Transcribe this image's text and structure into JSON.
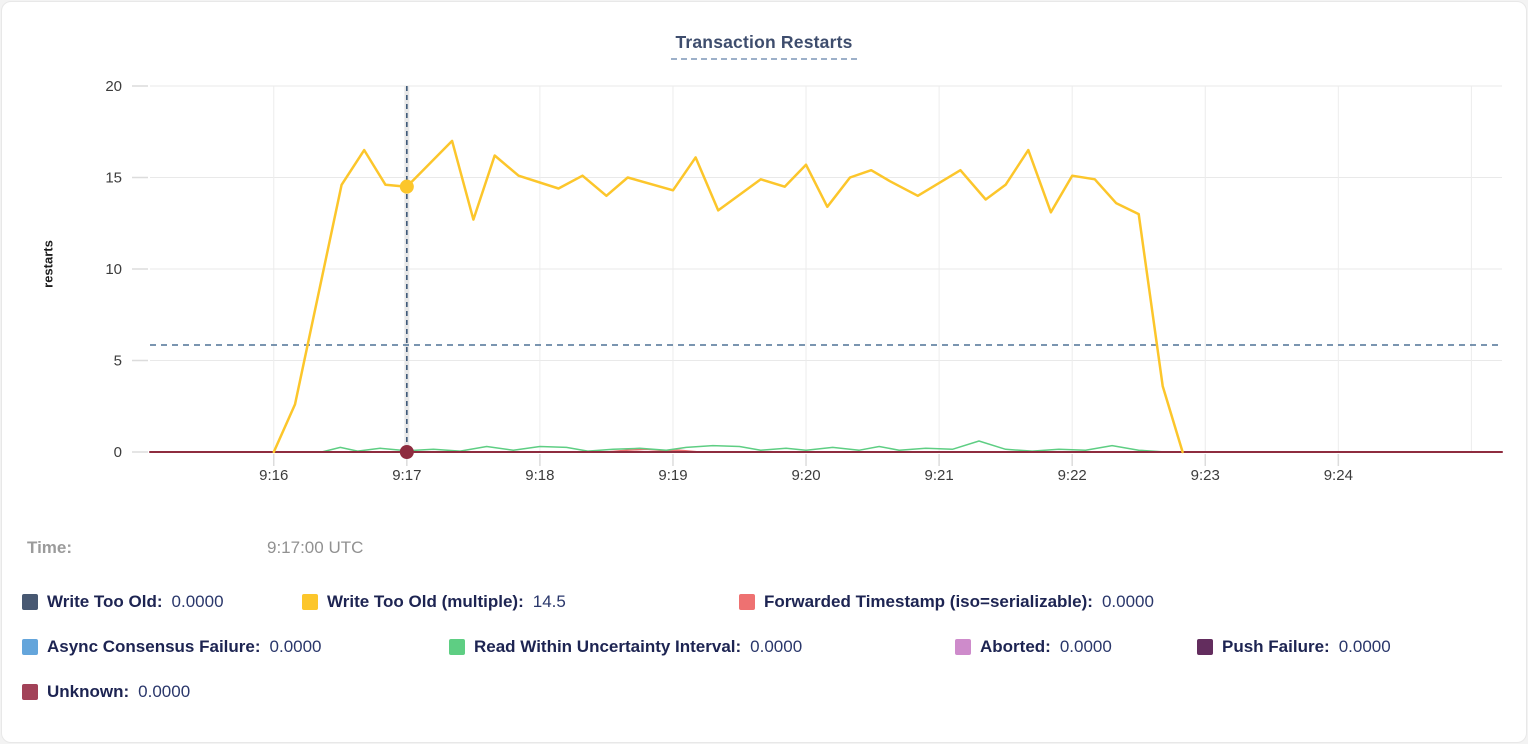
{
  "header": {
    "title": "Transaction Restarts"
  },
  "time_row": {
    "label": "Time:",
    "value": "9:17:00 UTC"
  },
  "legend": {
    "rows": [
      [
        {
          "label": "Write Too Old",
          "value": "0.0000",
          "color": "#475872"
        },
        {
          "label": "Write Too Old (multiple)",
          "value": "14.5",
          "color": "#FCC62B"
        },
        {
          "label": "Forwarded Timestamp (iso=serializable)",
          "value": "0.0000",
          "color": "#EE7171"
        }
      ],
      [
        {
          "label": "Async Consensus Failure",
          "value": "0.0000",
          "color": "#64A5DB"
        },
        {
          "label": "Read Within Uncertainty Interval",
          "value": "0.0000",
          "color": "#5ECE83"
        },
        {
          "label": "Aborted",
          "value": "0.0000",
          "color": "#CE8BCB"
        },
        {
          "label": "Push Failure",
          "value": "0.0000",
          "color": "#632D5E"
        }
      ],
      [
        {
          "label": "Unknown",
          "value": "0.0000",
          "color": "#A24258"
        }
      ]
    ]
  },
  "chart_data": {
    "type": "line",
    "title": "Transaction Restarts",
    "ylabel": "restarts",
    "ylim": [
      0,
      20
    ],
    "y_ticks": [
      0,
      5,
      10,
      15,
      20
    ],
    "x_unit": "clock time UTC, minutes after 9:00",
    "xlim": [
      15.07,
      25.23
    ],
    "x_ticks": [
      {
        "t": 16,
        "label": "9:16"
      },
      {
        "t": 17,
        "label": "9:17"
      },
      {
        "t": 18,
        "label": "9:18"
      },
      {
        "t": 19,
        "label": "9:19"
      },
      {
        "t": 20,
        "label": "9:20"
      },
      {
        "t": 21,
        "label": "9:21"
      },
      {
        "t": 22,
        "label": "9:22"
      },
      {
        "t": 23,
        "label": "9:23"
      },
      {
        "t": 24,
        "label": "9:24"
      },
      {
        "t": 25,
        "label": ""
      }
    ],
    "grid": true,
    "threshold_line": {
      "value": 5.85,
      "style": "dashed"
    },
    "crosshair": {
      "x": 17.0,
      "time_label": "9:17:00 UTC",
      "dots": [
        {
          "series": "Write Too Old (multiple)",
          "value": 14.5,
          "color": "#FCC62B"
        },
        {
          "series": "Unknown",
          "value": 0,
          "color": "#8E2C3F"
        }
      ]
    },
    "series": [
      {
        "name": "Forwarded Timestamp (iso=serializable)",
        "color": "#EE7171",
        "width": 1.5,
        "points": [
          [
            15.07,
            0
          ],
          [
            18.5,
            0
          ],
          [
            18.65,
            0.1
          ],
          [
            18.8,
            0.15
          ],
          [
            18.95,
            0.07
          ],
          [
            19.05,
            0.1
          ],
          [
            19.2,
            0
          ],
          [
            25.23,
            0
          ]
        ]
      },
      {
        "name": "Read Within Uncertainty Interval",
        "color": "#5ECE83",
        "width": 1.5,
        "points": [
          [
            16.36,
            0
          ],
          [
            16.5,
            0.25
          ],
          [
            16.63,
            0.05
          ],
          [
            16.8,
            0.2
          ],
          [
            17.0,
            0.07
          ],
          [
            17.2,
            0.15
          ],
          [
            17.4,
            0.05
          ],
          [
            17.6,
            0.3
          ],
          [
            17.8,
            0.1
          ],
          [
            18.0,
            0.3
          ],
          [
            18.2,
            0.25
          ],
          [
            18.36,
            0.05
          ],
          [
            18.55,
            0.15
          ],
          [
            18.75,
            0.2
          ],
          [
            18.95,
            0.1
          ],
          [
            19.1,
            0.25
          ],
          [
            19.3,
            0.35
          ],
          [
            19.5,
            0.3
          ],
          [
            19.66,
            0.1
          ],
          [
            19.85,
            0.2
          ],
          [
            20.0,
            0.1
          ],
          [
            20.2,
            0.25
          ],
          [
            20.4,
            0.1
          ],
          [
            20.55,
            0.3
          ],
          [
            20.7,
            0.1
          ],
          [
            20.9,
            0.2
          ],
          [
            21.1,
            0.15
          ],
          [
            21.3,
            0.6
          ],
          [
            21.5,
            0.15
          ],
          [
            21.7,
            0.05
          ],
          [
            21.9,
            0.15
          ],
          [
            22.1,
            0.1
          ],
          [
            22.3,
            0.35
          ],
          [
            22.5,
            0.1
          ],
          [
            22.7,
            0
          ]
        ]
      },
      {
        "name": "Unknown",
        "color": "#8E2C3F",
        "width": 2,
        "points": [
          [
            15.07,
            0
          ],
          [
            25.23,
            0
          ]
        ]
      },
      {
        "name": "Write Too Old (multiple)",
        "color": "#FCC62B",
        "width": 2.5,
        "points": [
          [
            16.0,
            0
          ],
          [
            16.16,
            2.6
          ],
          [
            16.51,
            14.6
          ],
          [
            16.68,
            16.5
          ],
          [
            16.84,
            14.6
          ],
          [
            17.0,
            14.5
          ],
          [
            17.34,
            17.0
          ],
          [
            17.5,
            12.7
          ],
          [
            17.66,
            16.2
          ],
          [
            17.84,
            15.1
          ],
          [
            18.14,
            14.4
          ],
          [
            18.32,
            15.1
          ],
          [
            18.5,
            14.0
          ],
          [
            18.66,
            15.0
          ],
          [
            19.0,
            14.3
          ],
          [
            19.17,
            16.1
          ],
          [
            19.34,
            13.2
          ],
          [
            19.66,
            14.9
          ],
          [
            19.84,
            14.5
          ],
          [
            20.0,
            15.7
          ],
          [
            20.16,
            13.4
          ],
          [
            20.33,
            15.0
          ],
          [
            20.49,
            15.4
          ],
          [
            20.63,
            14.8
          ],
          [
            20.84,
            14.0
          ],
          [
            21.16,
            15.4
          ],
          [
            21.35,
            13.8
          ],
          [
            21.5,
            14.6
          ],
          [
            21.67,
            16.5
          ],
          [
            21.84,
            13.1
          ],
          [
            22.0,
            15.1
          ],
          [
            22.17,
            14.9
          ],
          [
            22.33,
            13.6
          ],
          [
            22.5,
            13.0
          ],
          [
            22.68,
            3.6
          ],
          [
            22.83,
            0
          ]
        ]
      }
    ],
    "colors": {
      "grid_h": "#e9e9e9",
      "grid_v": "#ececec",
      "tick": "#dcdcdc",
      "axis_text": "#3c3c3c",
      "crosshair": "#3D5878",
      "crosshair_band": "#e8e8e8",
      "threshold": "#4F7295"
    },
    "legend_position": "bottom"
  }
}
